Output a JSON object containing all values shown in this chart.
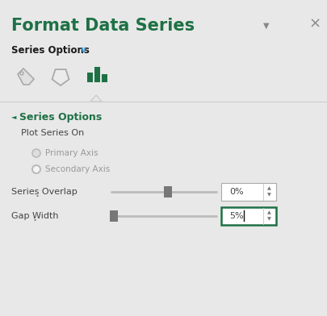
{
  "bg_color": "#E8E8E8",
  "title_text": "Format Data Series",
  "title_color": "#1E7145",
  "title_fontsize": 15,
  "section_header_text": "Series Options",
  "section_header_color": "#1a1a1a",
  "section_header_fontsize": 8.5,
  "series_options_label": "Series Options",
  "series_options_color": "#1E7145",
  "series_options_fontsize": 9,
  "plot_series_on_text": "Plot Series On",
  "plot_series_on_color": "#444444",
  "plot_series_on_fontsize": 8,
  "primary_axis_text": "Primary Axis",
  "secondary_axis_text": "Secondary Axis",
  "radio_text_color": "#999999",
  "radio_fontsize": 7.5,
  "series_overlap_text": "Series Overlap",
  "gap_width_text": "Gap Width",
  "row_label_color": "#444444",
  "row_label_fontsize": 8,
  "overlap_value": "0%",
  "gap_value": "5%",
  "value_fontsize": 8,
  "value_color": "#444444",
  "slider_color": "#BBBBBB",
  "slider_handle_color": "#777777",
  "box_bg": "#FFFFFF",
  "gap_box_border": "#1E7145",
  "overlap_box_border": "#AAAAAA",
  "bar_icon_color": "#1E7145",
  "divider_color": "#CCCCCC",
  "close_color": "#888888",
  "arrow_color": "#888888",
  "chevron_color": "#4EA8DE",
  "triangle_arrow_color": "#1E7145"
}
